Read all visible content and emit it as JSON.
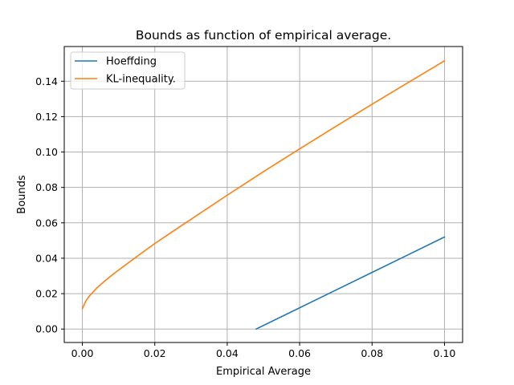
{
  "chart_data": {
    "type": "line",
    "title": "Bounds as function of empirical average.",
    "xlabel": "Empirical Average",
    "ylabel": "Bounds",
    "xlim": [
      -0.005,
      0.105
    ],
    "ylim": [
      -0.0076,
      0.1596
    ],
    "xticks": [
      0.0,
      0.02,
      0.04,
      0.06,
      0.08,
      0.1
    ],
    "xtick_labels": [
      "0.00",
      "0.02",
      "0.04",
      "0.06",
      "0.08",
      "0.10"
    ],
    "yticks": [
      0.0,
      0.02,
      0.04,
      0.06,
      0.08,
      0.1,
      0.12,
      0.14
    ],
    "ytick_labels": [
      "0.00",
      "0.02",
      "0.04",
      "0.06",
      "0.08",
      "0.10",
      "0.12",
      "0.14"
    ],
    "grid": true,
    "legend_position": "top-left",
    "series": [
      {
        "name": "Hoeffding",
        "color": "#1f77b4",
        "x": [
          0.048,
          0.06,
          0.07,
          0.08,
          0.09,
          0.1
        ],
        "y": [
          0.0,
          0.012,
          0.022,
          0.032,
          0.042,
          0.052
        ]
      },
      {
        "name": "KL-inequality.",
        "color": "#ff7f0e",
        "x": [
          0.0,
          0.001,
          0.002,
          0.004,
          0.006,
          0.008,
          0.01,
          0.015,
          0.02,
          0.025,
          0.03,
          0.04,
          0.05,
          0.06,
          0.07,
          0.08,
          0.09,
          0.1
        ],
        "y": [
          0.0115,
          0.016,
          0.0188,
          0.0232,
          0.0268,
          0.0302,
          0.0333,
          0.0409,
          0.0483,
          0.0552,
          0.062,
          0.0756,
          0.0889,
          0.1018,
          0.1145,
          0.127,
          0.1393,
          0.1515
        ]
      }
    ]
  }
}
